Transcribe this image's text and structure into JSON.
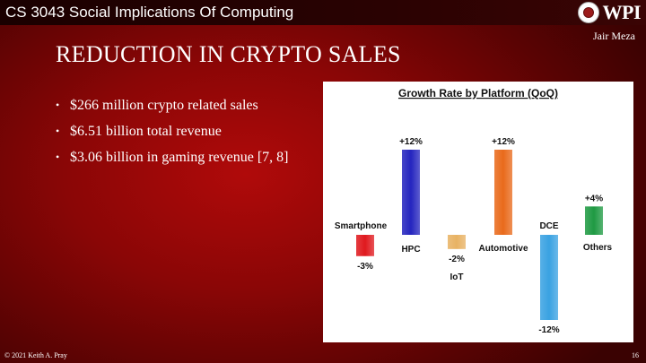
{
  "header": {
    "course": "CS 3043 Social Implications Of Computing",
    "logo_text": "WPI"
  },
  "author": "Jair Meza",
  "slide": {
    "title": "REDUCTION IN CRYPTO SALES",
    "bullets": [
      "$266 million crypto related sales",
      "$6.51 billion total revenue",
      "$3.06 billion in gaming revenue [7, 8]"
    ]
  },
  "footer": {
    "copyright": "© 2021 Keith A. Pray",
    "page": "16"
  },
  "chart_data": {
    "type": "bar",
    "title": "Growth Rate by Platform (QoQ)",
    "categories": [
      "Smartphone",
      "HPC",
      "IoT",
      "Automotive",
      "DCE",
      "Others"
    ],
    "values": [
      -3,
      12,
      -2,
      12,
      -12,
      4
    ],
    "data_labels": [
      "-3%",
      "+12%",
      "-2%",
      "+12%",
      "-12%",
      "+4%"
    ],
    "colors": [
      "#e0191e",
      "#2525bf",
      "#e8b263",
      "#e96a1b",
      "#3aa2e2",
      "#1f9a43"
    ],
    "ylim": [
      -12,
      12
    ],
    "grid": false,
    "legend": "none"
  }
}
